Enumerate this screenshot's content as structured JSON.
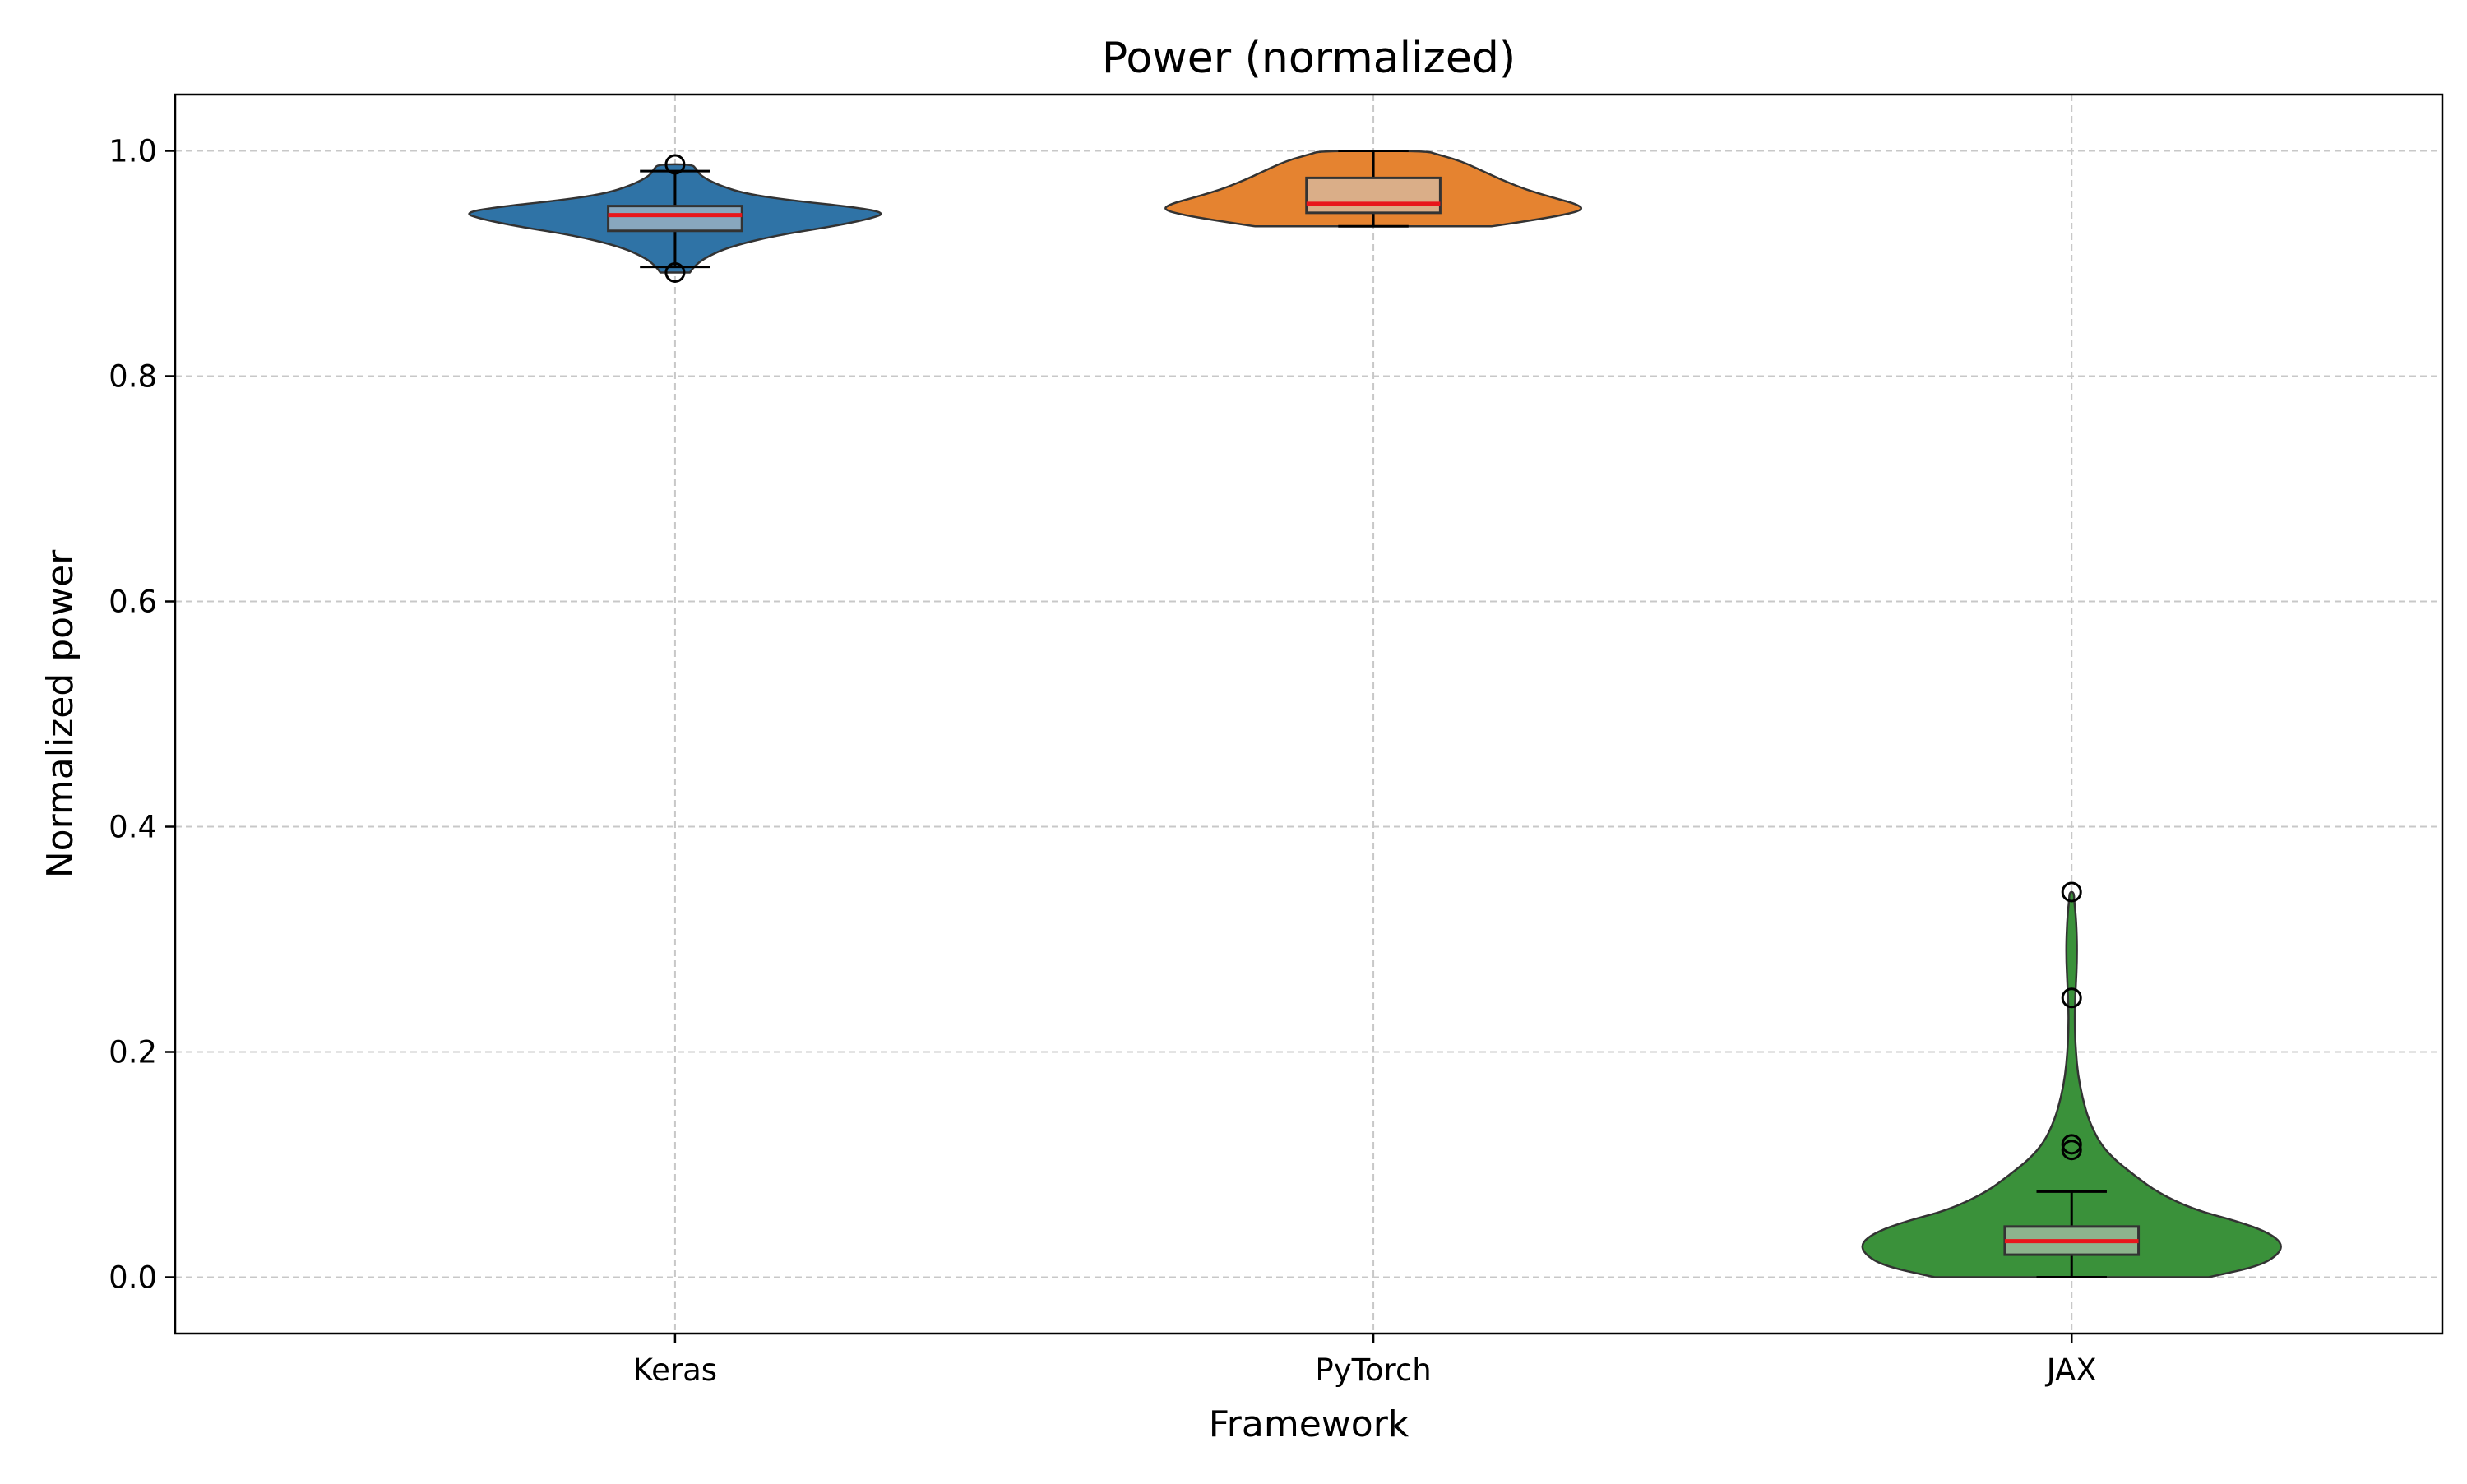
{
  "chart_data": {
    "type": "violin",
    "title": "Power (normalized)",
    "xlabel": "Framework",
    "ylabel": "Normalized power",
    "categories": [
      "Keras",
      "PyTorch",
      "JAX"
    ],
    "ylim": [
      -0.05,
      1.05
    ],
    "yticks": [
      0.0,
      0.2,
      0.4,
      0.6,
      0.8,
      1.0
    ],
    "ytick_labels": [
      "0.0",
      "0.2",
      "0.4",
      "0.6",
      "0.8",
      "1.0"
    ],
    "grid": true,
    "series": [
      {
        "category": "Keras",
        "color": "#2f73a6",
        "violin_range": [
          0.892,
          0.988
        ],
        "box": {
          "whisker_low": 0.897,
          "q1": 0.929,
          "median": 0.943,
          "q3": 0.951,
          "whisker_high": 0.982
        },
        "outliers": [
          0.988,
          0.892
        ],
        "density_profile": [
          [
            0.892,
            0.07
          ],
          [
            0.897,
            0.09
          ],
          [
            0.905,
            0.14
          ],
          [
            0.915,
            0.26
          ],
          [
            0.925,
            0.48
          ],
          [
            0.933,
            0.75
          ],
          [
            0.94,
            0.93
          ],
          [
            0.945,
            1.0
          ],
          [
            0.95,
            0.85
          ],
          [
            0.956,
            0.55
          ],
          [
            0.962,
            0.33
          ],
          [
            0.97,
            0.2
          ],
          [
            0.978,
            0.12
          ],
          [
            0.984,
            0.1
          ],
          [
            0.988,
            0.08
          ]
        ]
      },
      {
        "category": "PyTorch",
        "color": "#e58330",
        "violin_range": [
          0.933,
          1.0
        ],
        "box": {
          "whisker_low": 0.933,
          "q1": 0.945,
          "median": 0.953,
          "q3": 0.976,
          "whisker_high": 1.0
        },
        "outliers": [],
        "density_profile": [
          [
            0.933,
            0.56
          ],
          [
            0.938,
            0.74
          ],
          [
            0.943,
            0.9
          ],
          [
            0.948,
            1.0
          ],
          [
            0.953,
            0.96
          ],
          [
            0.958,
            0.86
          ],
          [
            0.963,
            0.77
          ],
          [
            0.968,
            0.69
          ],
          [
            0.975,
            0.6
          ],
          [
            0.982,
            0.52
          ],
          [
            0.988,
            0.45
          ],
          [
            0.993,
            0.38
          ],
          [
            0.997,
            0.3
          ],
          [
            1.0,
            0.25
          ]
        ]
      },
      {
        "category": "JAX",
        "color": "#3a913a",
        "violin_range": [
          0.0,
          0.342
        ],
        "box": {
          "whisker_low": 0.0,
          "q1": 0.02,
          "median": 0.032,
          "q3": 0.045,
          "whisker_high": 0.076
        },
        "outliers": [
          0.342,
          0.248,
          0.118,
          0.113
        ],
        "density_profile": [
          [
            0.0,
            0.65
          ],
          [
            0.01,
            0.89
          ],
          [
            0.02,
            0.98
          ],
          [
            0.03,
            1.0
          ],
          [
            0.04,
            0.93
          ],
          [
            0.05,
            0.78
          ],
          [
            0.06,
            0.58
          ],
          [
            0.075,
            0.41
          ],
          [
            0.09,
            0.3
          ],
          [
            0.105,
            0.2
          ],
          [
            0.12,
            0.13
          ],
          [
            0.14,
            0.08
          ],
          [
            0.16,
            0.05
          ],
          [
            0.18,
            0.03
          ],
          [
            0.2,
            0.02
          ],
          [
            0.22,
            0.015
          ],
          [
            0.24,
            0.015
          ],
          [
            0.26,
            0.02
          ],
          [
            0.28,
            0.025
          ],
          [
            0.3,
            0.025
          ],
          [
            0.32,
            0.02
          ],
          [
            0.335,
            0.012
          ],
          [
            0.342,
            0.01
          ]
        ]
      }
    ]
  }
}
